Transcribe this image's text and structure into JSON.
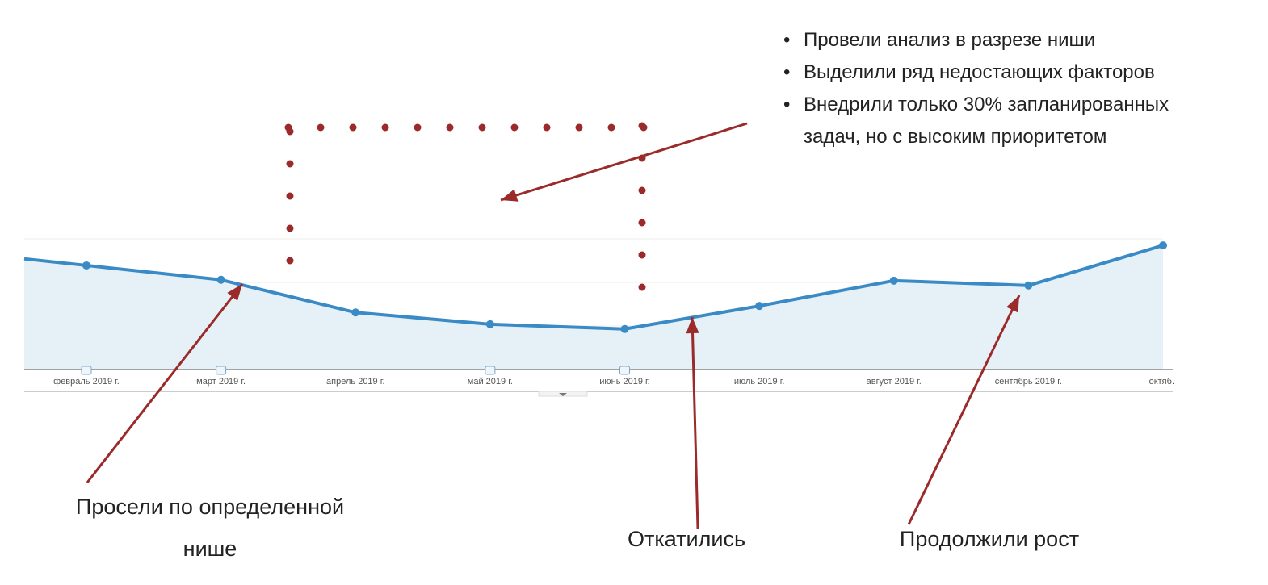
{
  "chart_data": {
    "type": "area",
    "title": "",
    "xlabel": "",
    "ylabel": "",
    "categories": [
      "февраль 2019 г.",
      "март 2019 г.",
      "апрель 2019 г.",
      "май 2019 г.",
      "июнь 2019 г.",
      "июль 2019 г.",
      "август 2019 г.",
      "сентябрь 2019 г.",
      "октяб."
    ],
    "values": [
      2.39,
      2.06,
      1.31,
      1.04,
      0.93,
      1.46,
      2.04,
      1.93,
      2.85
    ],
    "ylim": [
      0,
      3
    ],
    "y_tick_labels_shown": false,
    "grid": true,
    "annotation_markers_at": [
      "февраль 2019 г.",
      "март 2019 г.",
      "май 2019 г.",
      "июнь 2019 г."
    ],
    "colors": {
      "line": "#3a8ac6",
      "fill": "#e6f1f7",
      "annotation": "#9b2a2a"
    }
  },
  "annotations": {
    "bullets": [
      "Провели анализ в разрезе ниши",
      "Выделили ряд недостающих факторов",
      "Внедрили только 30% запланированных",
      "задач, но с высоким приоритетом"
    ],
    "drop_note": [
      "Просели по определенной",
      "нише"
    ],
    "rollback_note": "Откатились",
    "growth_note": "Продолжили рост"
  }
}
